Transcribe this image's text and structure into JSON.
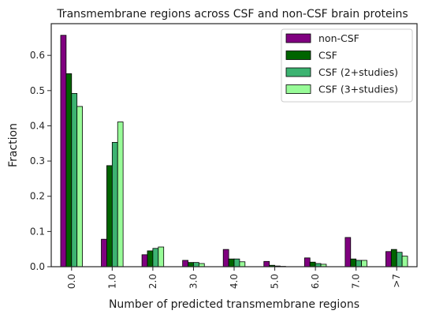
{
  "chart_data": {
    "type": "bar",
    "title": "Transmembrane regions across CSF and non-CSF brain proteins",
    "xlabel": "Number of predicted transmembrane regions",
    "ylabel": "Fraction",
    "categories": [
      "0.0",
      "1.0",
      "2.0",
      "3.0",
      "4.0",
      "5.0",
      "6.0",
      "7.0",
      ">7"
    ],
    "ylim": [
      0,
      0.69
    ],
    "yticks": [
      "0.0",
      "0.1",
      "0.2",
      "0.3",
      "0.4",
      "0.5",
      "0.6"
    ],
    "grid": false,
    "legend_position": "top-right",
    "series": [
      {
        "name": "non-CSF",
        "color": "#800080",
        "values": [
          0.657,
          0.078,
          0.034,
          0.018,
          0.049,
          0.015,
          0.025,
          0.083,
          0.043
        ]
      },
      {
        "name": "CSF",
        "color": "#006400",
        "values": [
          0.548,
          0.287,
          0.045,
          0.012,
          0.022,
          0.004,
          0.013,
          0.022,
          0.049
        ]
      },
      {
        "name": "CSF (2+studies)",
        "color": "#3cb371",
        "values": [
          0.492,
          0.353,
          0.052,
          0.012,
          0.022,
          0.002,
          0.009,
          0.018,
          0.041
        ]
      },
      {
        "name": "CSF (3+studies)",
        "color": "#98fb98",
        "values": [
          0.455,
          0.411,
          0.056,
          0.009,
          0.014,
          0.001,
          0.007,
          0.018,
          0.03
        ]
      }
    ]
  }
}
